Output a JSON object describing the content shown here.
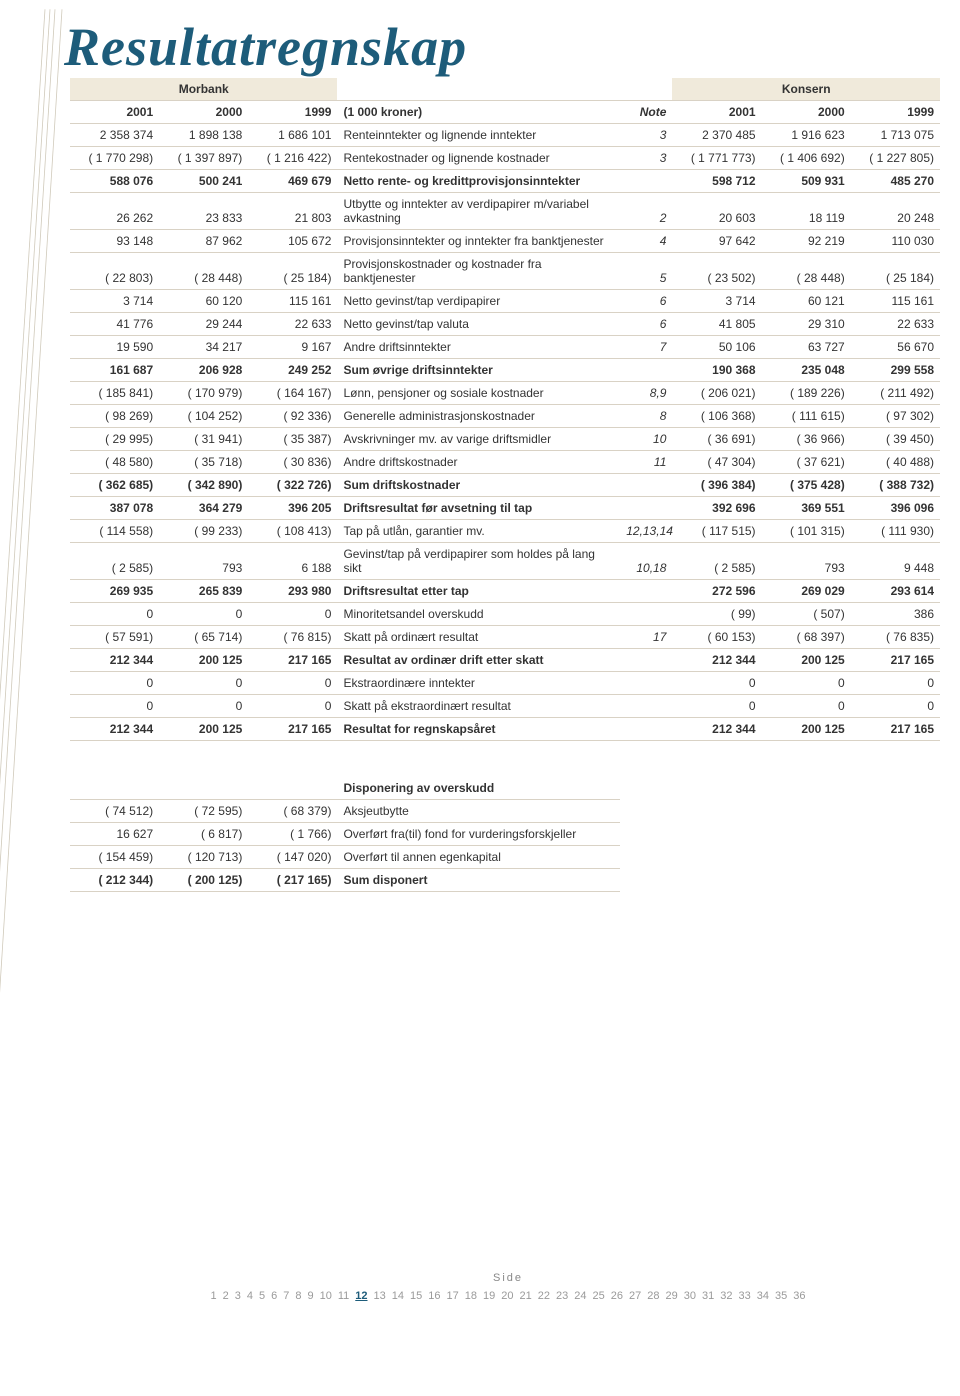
{
  "title": "Resultatregnskap",
  "group_headers": {
    "left": "Morbank",
    "right": "Konsern"
  },
  "col_headers": [
    "2001",
    "2000",
    "1999",
    "(1 000 kroner)",
    "Note",
    "2001",
    "2000",
    "1999"
  ],
  "rows": [
    {
      "c": [
        "2 358 374",
        "1 898 138",
        "1 686 101",
        "Renteinntekter og lignende inntekter",
        "3",
        "2 370 485",
        "1 916 623",
        "1 713 075"
      ]
    },
    {
      "c": [
        "( 1 770 298)",
        "( 1 397 897)",
        "( 1 216 422)",
        "Rentekostnader og lignende kostnader",
        "3",
        "( 1 771 773)",
        "( 1 406 692)",
        "( 1 227 805)"
      ]
    },
    {
      "bold": true,
      "c": [
        "588 076",
        "500 241",
        "469 679",
        "Netto rente- og kredittprovisjonsinntekter",
        "",
        "598 712",
        "509 931",
        "485 270"
      ]
    },
    {
      "c": [
        "26 262",
        "23 833",
        "21 803",
        "Utbytte og inntekter av verdipapirer m/variabel avkastning",
        "2",
        "20 603",
        "18 119",
        "20 248"
      ]
    },
    {
      "c": [
        "93 148",
        "87 962",
        "105 672",
        "Provisjonsinntekter og inntekter fra banktjenester",
        "4",
        "97 642",
        "92 219",
        "110 030"
      ]
    },
    {
      "c": [
        "( 22 803)",
        "( 28 448)",
        "( 25 184)",
        "Provisjonskostnader og kostnader fra banktjenester",
        "5",
        "( 23 502)",
        "( 28 448)",
        "( 25 184)"
      ]
    },
    {
      "c": [
        "3 714",
        "60 120",
        "115 161",
        "Netto gevinst/tap verdipapirer",
        "6",
        "3 714",
        "60 121",
        "115 161"
      ]
    },
    {
      "c": [
        "41 776",
        "29 244",
        "22 633",
        "Netto gevinst/tap valuta",
        "6",
        "41 805",
        "29 310",
        "22 633"
      ]
    },
    {
      "c": [
        "19 590",
        "34 217",
        "9 167",
        "Andre driftsinntekter",
        "7",
        "50 106",
        "63 727",
        "56 670"
      ]
    },
    {
      "bold": true,
      "c": [
        "161 687",
        "206 928",
        "249 252",
        "Sum øvrige driftsinntekter",
        "",
        "190 368",
        "235 048",
        "299 558"
      ]
    },
    {
      "c": [
        "( 185 841)",
        "( 170 979)",
        "( 164 167)",
        "Lønn, pensjoner og sosiale kostnader",
        "8,9",
        "( 206 021)",
        "( 189 226)",
        "( 211 492)"
      ]
    },
    {
      "c": [
        "( 98 269)",
        "( 104 252)",
        "( 92 336)",
        "Generelle administrasjonskostnader",
        "8",
        "( 106 368)",
        "( 111 615)",
        "( 97 302)"
      ]
    },
    {
      "c": [
        "( 29 995)",
        "( 31 941)",
        "( 35 387)",
        "Avskrivninger mv. av varige driftsmidler",
        "10",
        "( 36 691)",
        "( 36 966)",
        "( 39 450)"
      ]
    },
    {
      "c": [
        "( 48 580)",
        "( 35 718)",
        "( 30 836)",
        "Andre driftskostnader",
        "11",
        "( 47 304)",
        "( 37 621)",
        "( 40 488)"
      ]
    },
    {
      "bold": true,
      "c": [
        "( 362 685)",
        "( 342 890)",
        "( 322 726)",
        "Sum driftskostnader",
        "",
        "( 396 384)",
        "( 375 428)",
        "( 388 732)"
      ]
    },
    {
      "bold": true,
      "c": [
        "387 078",
        "364 279",
        "396 205",
        "Driftsresultat før avsetning til tap",
        "",
        "392 696",
        "369 551",
        "396 096"
      ]
    },
    {
      "c": [
        "( 114 558)",
        "( 99 233)",
        "( 108 413)",
        "Tap på utlån, garantier mv.",
        "12,13,14",
        "( 117 515)",
        "( 101 315)",
        "( 111 930)"
      ]
    },
    {
      "c": [
        "( 2 585)",
        "793",
        "6 188",
        "Gevinst/tap på verdipapirer som holdes på lang sikt",
        "10,18",
        "( 2 585)",
        "793",
        "9 448"
      ]
    },
    {
      "bold": true,
      "c": [
        "269 935",
        "265 839",
        "293 980",
        "Driftsresultat etter tap",
        "",
        "272 596",
        "269 029",
        "293 614"
      ]
    },
    {
      "c": [
        "0",
        "0",
        "0",
        "Minoritetsandel overskudd",
        "",
        "( 99)",
        "( 507)",
        "386"
      ]
    },
    {
      "c": [
        "( 57 591)",
        "( 65 714)",
        "( 76 815)",
        "Skatt på ordinært resultat",
        "17",
        "( 60 153)",
        "( 68 397)",
        "( 76 835)"
      ]
    },
    {
      "bold": true,
      "c": [
        "212 344",
        "200 125",
        "217 165",
        "Resultat av ordinær drift etter skatt",
        "",
        "212 344",
        "200 125",
        "217 165"
      ]
    },
    {
      "c": [
        "0",
        "0",
        "0",
        "Ekstraordinære inntekter",
        "",
        "0",
        "0",
        "0"
      ]
    },
    {
      "c": [
        "0",
        "0",
        "0",
        "Skatt på ekstraordinært resultat",
        "",
        "0",
        "0",
        "0"
      ]
    },
    {
      "bold": true,
      "c": [
        "212 344",
        "200 125",
        "217 165",
        "Resultat for regnskapsåret",
        "",
        "212 344",
        "200 125",
        "217 165"
      ]
    }
  ],
  "disp_header": "Disponering av overskudd",
  "disp_rows": [
    {
      "c": [
        "( 74 512)",
        "( 72 595)",
        "( 68 379)",
        "Aksjeutbytte"
      ]
    },
    {
      "c": [
        "16 627",
        "( 6 817)",
        "( 1 766)",
        "Overført fra(til) fond for vurderingsforskjeller"
      ]
    },
    {
      "c": [
        "( 154 459)",
        "( 120 713)",
        "( 147 020)",
        "Overført til annen egenkapital"
      ]
    },
    {
      "bold": true,
      "c": [
        "( 212 344)",
        "( 200 125)",
        "( 217 165)",
        "Sum disponert"
      ]
    }
  ],
  "footer_label": "Side",
  "pager_current": 12,
  "pager_total": 36,
  "colors": {
    "accent": "#1d5c7a",
    "row_border": "#d9d2c5",
    "header_bg": "#f0eadb",
    "muted": "#9a9a9a"
  }
}
